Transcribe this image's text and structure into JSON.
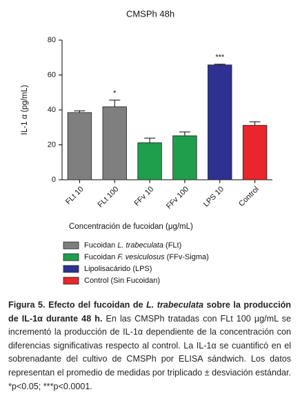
{
  "chart_data": {
    "type": "bar",
    "title": "CMSPh 48h",
    "y_label": "IL-1 α (pg/mL)",
    "x_label": "Concentración de fucoidan (μg/mL)",
    "categories": [
      "FLt 10",
      "FLt 100",
      "FFv 10",
      "FFv 100",
      "LPS 10",
      "Control"
    ],
    "values": [
      38.5,
      41.8,
      21.2,
      25.2,
      65.8,
      31.2
    ],
    "errors": [
      1.0,
      3.8,
      2.6,
      2.2,
      0.4,
      2.0
    ],
    "colors": [
      "#7f7f7f",
      "#7f7f7f",
      "#1f9e4b",
      "#1f9e4b",
      "#2e3192",
      "#e8262b"
    ],
    "significance": [
      null,
      "*",
      null,
      null,
      "***",
      null
    ],
    "ylim": [
      0,
      80
    ],
    "yticks": [
      0,
      20,
      40,
      60,
      80
    ],
    "legend": [
      {
        "name": [
          "Fucoidan ",
          "L. trabeculata",
          " (FLt)"
        ],
        "color": "#7f7f7f"
      },
      {
        "name": [
          "Fucoidan ",
          "F. vesiculosus",
          " (FFv-Sigma)"
        ],
        "color": "#1f9e4b"
      },
      {
        "name": [
          "Lipolisacárido (LPS)"
        ],
        "color": "#2e3192"
      },
      {
        "name": [
          "Control (Sin Fucoidan)"
        ],
        "color": "#e8262b"
      }
    ]
  },
  "caption": {
    "label": [
      "Figura 5. Efecto del fucoidan de ",
      "L. trabeculata",
      " sobre la producción de IL-1α durante 48 h."
    ],
    "text": " En las CMSPh tratadas con FLt 100 µg/mL se incrementó la producción de IL-1α dependiente de la concentración con diferencias significativas respecto al control. La IL-1α se cuantificó en el sobrenadante del cultivo de CMSPh por ELISA sándwich. Los datos representan el promedio de medidas por triplicado ± desviación estándar. *p<0.05; ***p<0.0001."
  }
}
